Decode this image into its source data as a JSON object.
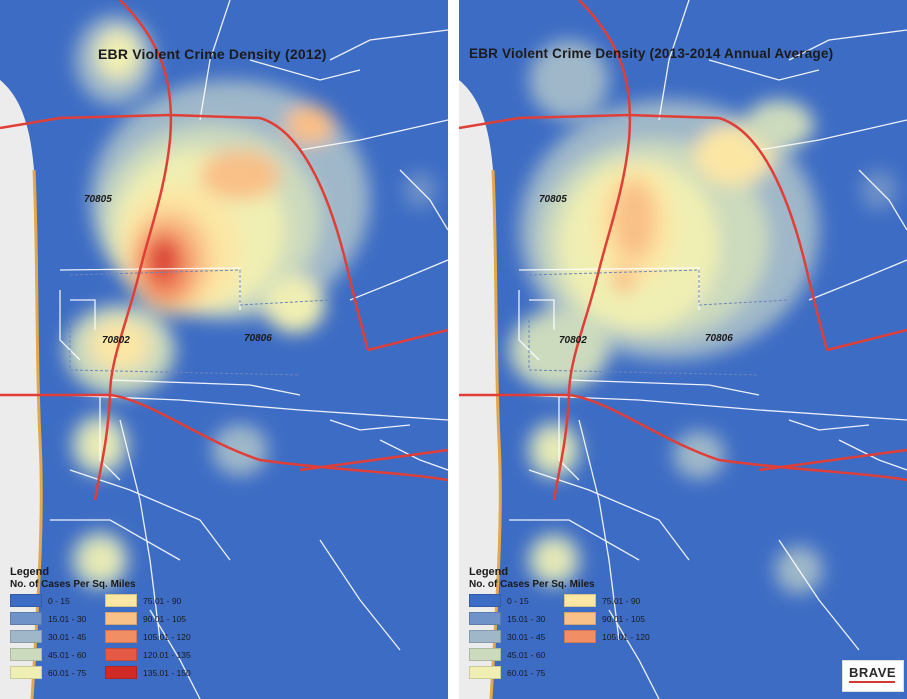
{
  "maps": [
    {
      "title": "EBR Violent Crime Density (2012)",
      "zip_labels": [
        "70805",
        "70802",
        "70806"
      ],
      "legend": {
        "title": "Legend",
        "subtitle": "No. of Cases Per Sq. Miles",
        "classes": [
          {
            "label": "0 - 15",
            "color": "#3d6cc4"
          },
          {
            "label": "15.01 - 30",
            "color": "#6f92c8"
          },
          {
            "label": "30.01 - 45",
            "color": "#9fb7c9"
          },
          {
            "label": "45.01 - 60",
            "color": "#ccdabd"
          },
          {
            "label": "60.01 - 75",
            "color": "#f0efb3"
          },
          {
            "label": "75.01 - 90",
            "color": "#fce6a4"
          },
          {
            "label": "90.01 - 105",
            "color": "#f9c087"
          },
          {
            "label": "105.01 - 120",
            "color": "#f28e63"
          },
          {
            "label": "120.01 - 135",
            "color": "#e55a45"
          },
          {
            "label": "135.01 - 150",
            "color": "#cf2a26"
          }
        ]
      }
    },
    {
      "title": "EBR Violent Crime Density (2013-2014 Annual Average)",
      "zip_labels": [
        "70805",
        "70802",
        "70806"
      ],
      "legend": {
        "title": "Legend",
        "subtitle": "No. of Cases Per Sq. Miles",
        "classes": [
          {
            "label": "0 - 15",
            "color": "#3d6cc4"
          },
          {
            "label": "15.01 - 30",
            "color": "#6f92c8"
          },
          {
            "label": "30.01 - 45",
            "color": "#9fb7c9"
          },
          {
            "label": "45.01 - 60",
            "color": "#ccdabd"
          },
          {
            "label": "60.01 - 75",
            "color": "#f0efb3"
          },
          {
            "label": "75.01 - 90",
            "color": "#fce6a4"
          },
          {
            "label": "90.01 - 105",
            "color": "#f9c087"
          },
          {
            "label": "105.01 - 120",
            "color": "#f28e63"
          }
        ]
      }
    }
  ],
  "logo": {
    "text": "BRAVE"
  }
}
